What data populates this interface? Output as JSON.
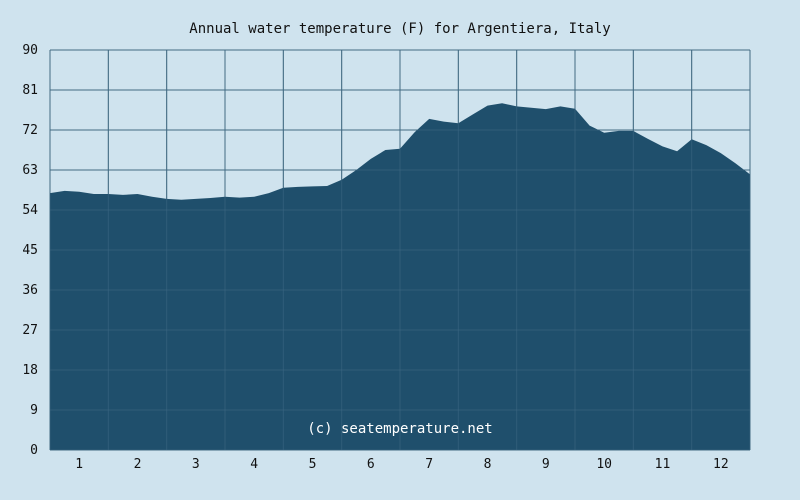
{
  "chart_data": {
    "type": "area",
    "title": "Annual water temperature (F) for Argentiera, Italy",
    "xlabel": "",
    "ylabel": "",
    "ylim": [
      0,
      90
    ],
    "yticks": [
      0,
      9,
      18,
      27,
      36,
      45,
      54,
      63,
      72,
      81,
      90
    ],
    "categories": [
      "1",
      "2",
      "3",
      "4",
      "5",
      "6",
      "7",
      "8",
      "9",
      "10",
      "11",
      "12"
    ],
    "grid": true,
    "x": [
      0.0,
      0.25,
      0.5,
      0.75,
      1.0,
      1.25,
      1.5,
      1.75,
      2.0,
      2.25,
      2.5,
      2.75,
      3.0,
      3.25,
      3.5,
      3.75,
      4.0,
      4.25,
      4.5,
      4.75,
      5.0,
      5.25,
      5.5,
      5.75,
      6.0,
      6.25,
      6.5,
      6.75,
      7.0,
      7.25,
      7.5,
      7.75,
      8.0,
      8.25,
      8.5,
      8.75,
      9.0,
      9.25,
      9.5,
      9.75,
      10.0,
      10.25,
      10.5,
      10.75,
      11.0,
      11.25,
      11.5,
      11.75,
      12.0
    ],
    "values": [
      57.8,
      58.3,
      58.1,
      57.6,
      57.6,
      57.4,
      57.6,
      57.0,
      56.5,
      56.3,
      56.5,
      56.7,
      57.0,
      56.8,
      57.0,
      57.8,
      59.0,
      59.2,
      59.3,
      59.4,
      60.8,
      63.0,
      65.5,
      67.5,
      67.8,
      71.5,
      74.5,
      73.9,
      73.5,
      75.5,
      77.5,
      78.0,
      77.3,
      77.0,
      76.7,
      77.3,
      76.8,
      73.0,
      71.4,
      71.8,
      71.8,
      70.0,
      68.3,
      67.2,
      69.9,
      68.6,
      66.8,
      64.5,
      62.0
    ]
  },
  "watermark": "(c) seatemperature.net",
  "colors": {
    "background": "#cfe3ee",
    "area": "#1f4f6c",
    "grid_on_background": "#4a6d80",
    "grid_on_area": "#3e6a85",
    "axis_text": "#111111"
  }
}
